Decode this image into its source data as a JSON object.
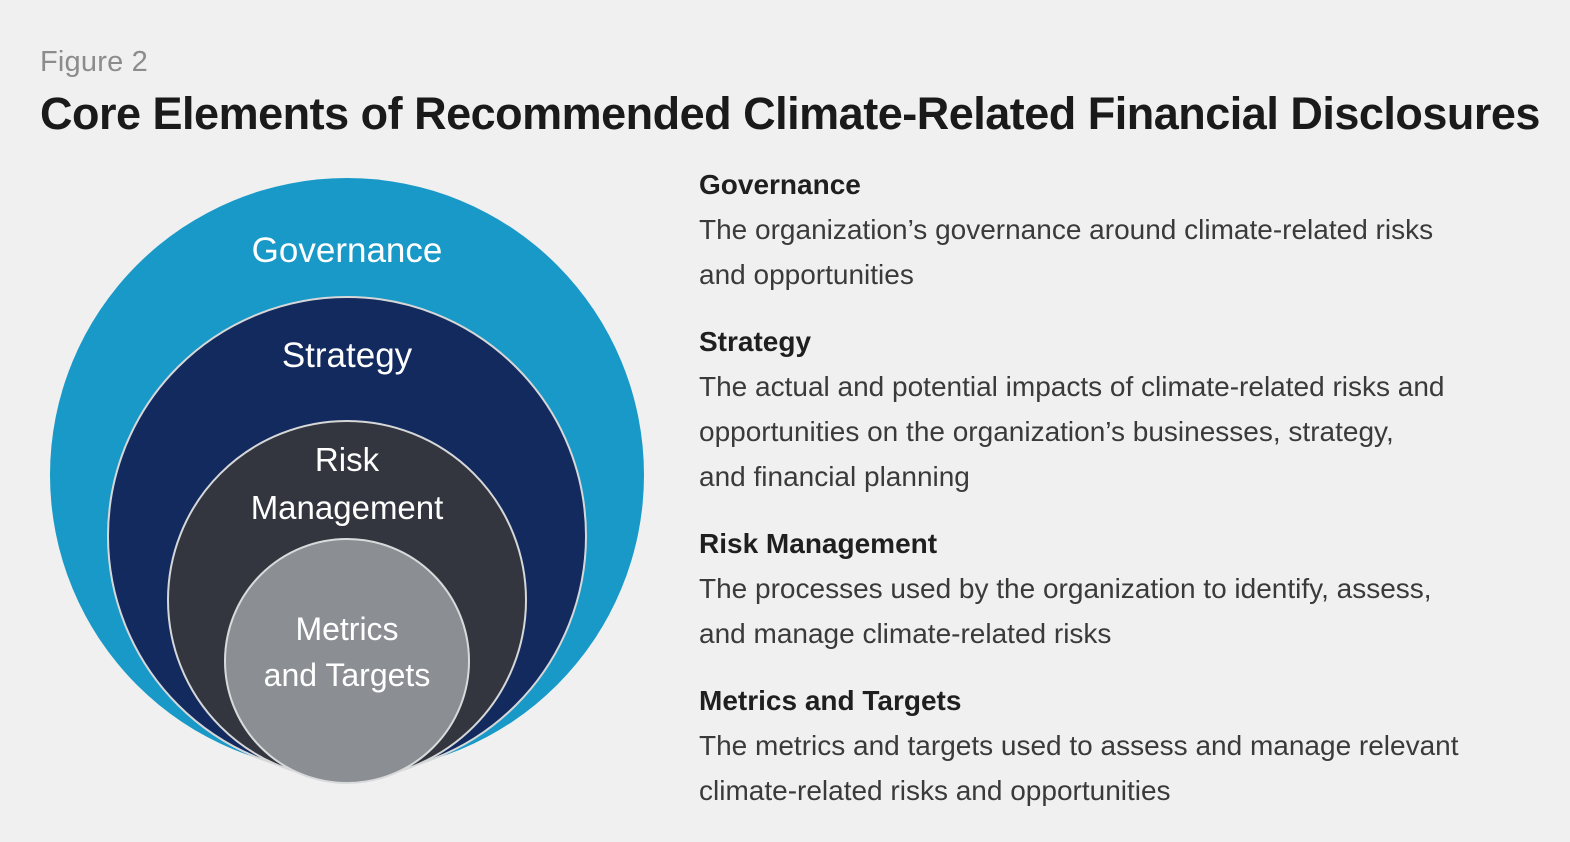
{
  "figure": {
    "label": "Figure 2",
    "title": "Core Elements of Recommended Climate-Related Financial Disclosures"
  },
  "diagram": {
    "rings": [
      {
        "name": "governance",
        "label": "Governance",
        "color": "#1999c7"
      },
      {
        "name": "strategy",
        "label": "Strategy",
        "color": "#132a5e"
      },
      {
        "name": "risk-management",
        "label_lines": [
          "Risk",
          "Management"
        ],
        "color": "#33363e"
      },
      {
        "name": "metrics-and-targets",
        "label_lines": [
          "Metrics",
          "and Targets"
        ],
        "color": "#8b8f94"
      }
    ],
    "ring_stroke_color": "#d6d7d8",
    "label_text_color": "#ffffff"
  },
  "definitions": [
    {
      "heading": "Governance",
      "body_lines": [
        "The organization’s governance around climate-related risks",
        "and opportunities"
      ]
    },
    {
      "heading": "Strategy",
      "body_lines": [
        "The actual and potential impacts of climate-related risks and",
        "opportunities on the organization’s businesses, strategy,",
        "and financial planning"
      ]
    },
    {
      "heading": "Risk Management",
      "body_lines": [
        "The processes used by the organization to identify, assess,",
        "and manage climate-related risks"
      ]
    },
    {
      "heading": "Metrics and Targets",
      "body_lines": [
        "The metrics and targets used to assess and manage relevant",
        "climate-related risks and opportunities"
      ]
    }
  ],
  "page": {
    "background_color": "#f0f0f1"
  }
}
